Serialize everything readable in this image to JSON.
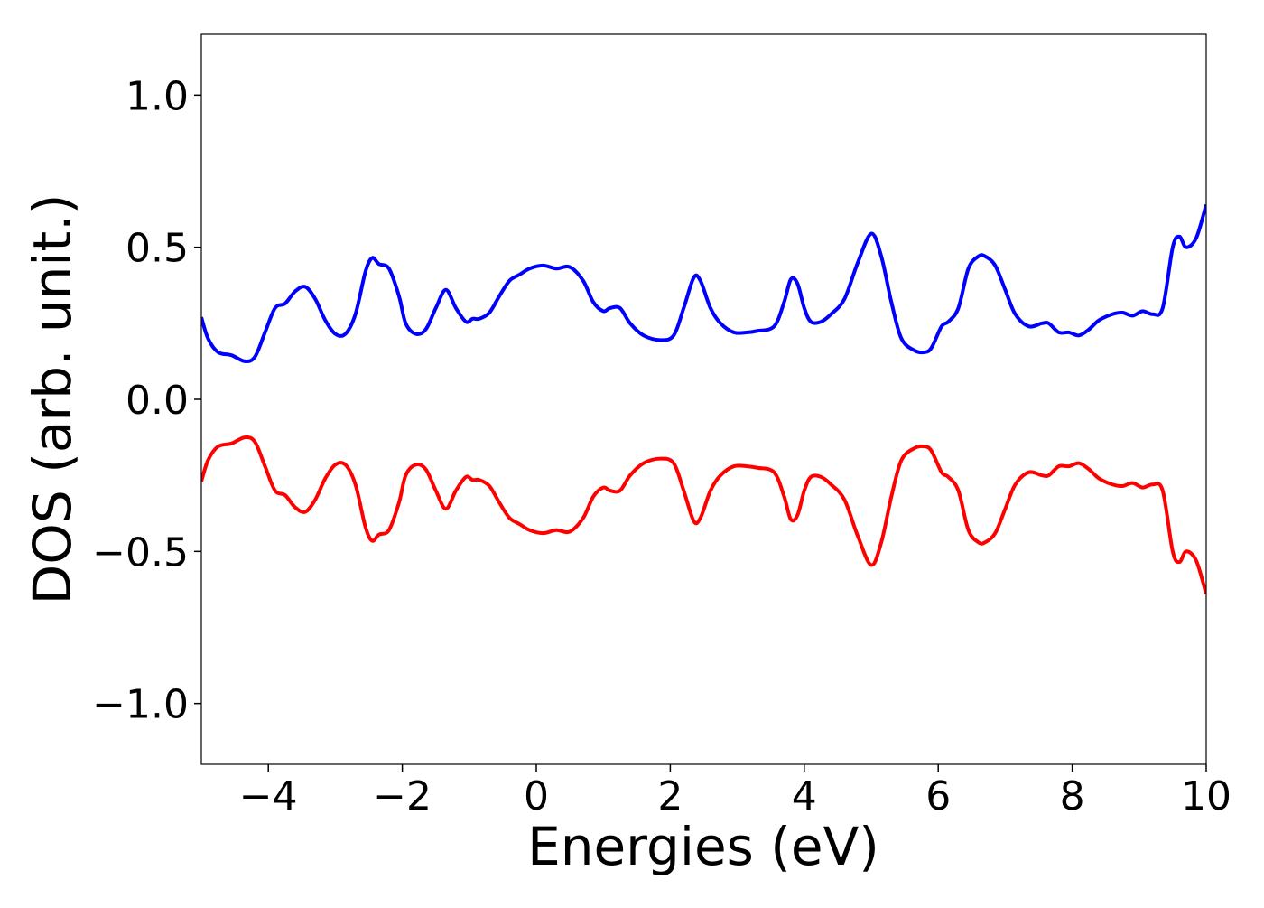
{
  "chart_data": {
    "type": "line",
    "title": "",
    "xlabel": "Energies (eV)",
    "ylabel": "DOS (arb. unit.)",
    "xlim": [
      -5,
      10
    ],
    "ylim": [
      -1.2,
      1.2
    ],
    "grid": false,
    "legend": "none",
    "x_ticks": [
      {
        "value": -4,
        "label": "−4"
      },
      {
        "value": -2,
        "label": "−2"
      },
      {
        "value": 0,
        "label": "0"
      },
      {
        "value": 2,
        "label": "2"
      },
      {
        "value": 4,
        "label": "4"
      },
      {
        "value": 6,
        "label": "6"
      },
      {
        "value": 8,
        "label": "8"
      },
      {
        "value": 10,
        "label": "10"
      }
    ],
    "y_ticks": [
      {
        "value": 1.0,
        "label": "1.0"
      },
      {
        "value": 0.5,
        "label": "0.5"
      },
      {
        "value": 0.0,
        "label": "0.0"
      },
      {
        "value": -0.5,
        "label": "−0.5"
      },
      {
        "value": -1.0,
        "label": "−1.0"
      }
    ],
    "series": [
      {
        "color": "#0000ff",
        "x": [
          -5.0,
          -4.9,
          -4.75,
          -4.55,
          -4.35,
          -4.2,
          -4.05,
          -3.9,
          -3.75,
          -3.6,
          -3.45,
          -3.3,
          -3.15,
          -3.0,
          -2.85,
          -2.7,
          -2.55,
          -2.45,
          -2.35,
          -2.2,
          -2.05,
          -1.95,
          -1.8,
          -1.65,
          -1.5,
          -1.35,
          -1.2,
          -1.05,
          -0.95,
          -0.85,
          -0.7,
          -0.55,
          -0.4,
          -0.25,
          -0.1,
          0.1,
          0.3,
          0.5,
          0.7,
          0.85,
          1.0,
          1.1,
          1.25,
          1.4,
          1.6,
          1.85,
          2.05,
          2.2,
          2.35,
          2.45,
          2.6,
          2.75,
          2.95,
          3.15,
          3.3,
          3.55,
          3.7,
          3.8,
          3.9,
          4.0,
          4.1,
          4.25,
          4.4,
          4.6,
          4.8,
          5.0,
          5.15,
          5.3,
          5.45,
          5.65,
          5.8,
          5.9,
          6.05,
          6.15,
          6.3,
          6.45,
          6.6,
          6.7,
          6.85,
          7.0,
          7.15,
          7.35,
          7.55,
          7.65,
          7.8,
          7.95,
          8.1,
          8.25,
          8.4,
          8.6,
          8.75,
          8.9,
          9.05,
          9.2,
          9.35,
          9.5,
          9.6,
          9.7,
          9.85,
          10.0
        ],
        "y": [
          0.27,
          0.2,
          0.155,
          0.145,
          0.125,
          0.14,
          0.22,
          0.3,
          0.315,
          0.355,
          0.37,
          0.33,
          0.26,
          0.215,
          0.215,
          0.28,
          0.42,
          0.465,
          0.445,
          0.43,
          0.34,
          0.25,
          0.215,
          0.23,
          0.3,
          0.36,
          0.3,
          0.255,
          0.265,
          0.265,
          0.285,
          0.34,
          0.39,
          0.41,
          0.43,
          0.44,
          0.43,
          0.435,
          0.39,
          0.32,
          0.29,
          0.3,
          0.3,
          0.25,
          0.21,
          0.195,
          0.21,
          0.3,
          0.4,
          0.39,
          0.3,
          0.25,
          0.22,
          0.22,
          0.225,
          0.24,
          0.32,
          0.395,
          0.38,
          0.3,
          0.255,
          0.255,
          0.28,
          0.33,
          0.45,
          0.545,
          0.47,
          0.32,
          0.2,
          0.16,
          0.155,
          0.17,
          0.24,
          0.255,
          0.3,
          0.43,
          0.47,
          0.47,
          0.44,
          0.36,
          0.28,
          0.24,
          0.25,
          0.25,
          0.22,
          0.22,
          0.21,
          0.23,
          0.26,
          0.28,
          0.285,
          0.275,
          0.29,
          0.28,
          0.3,
          0.5,
          0.535,
          0.5,
          0.53,
          0.64
        ]
      },
      {
        "color": "#ff0000",
        "x": [
          -5.0,
          -4.9,
          -4.75,
          -4.55,
          -4.35,
          -4.2,
          -4.05,
          -3.9,
          -3.75,
          -3.6,
          -3.45,
          -3.3,
          -3.15,
          -3.0,
          -2.85,
          -2.7,
          -2.55,
          -2.45,
          -2.35,
          -2.2,
          -2.05,
          -1.95,
          -1.8,
          -1.65,
          -1.5,
          -1.35,
          -1.2,
          -1.05,
          -0.95,
          -0.85,
          -0.7,
          -0.55,
          -0.4,
          -0.25,
          -0.1,
          0.1,
          0.3,
          0.5,
          0.7,
          0.85,
          1.0,
          1.1,
          1.25,
          1.4,
          1.6,
          1.85,
          2.05,
          2.2,
          2.35,
          2.45,
          2.6,
          2.75,
          2.95,
          3.15,
          3.3,
          3.55,
          3.7,
          3.8,
          3.9,
          4.0,
          4.1,
          4.25,
          4.4,
          4.6,
          4.8,
          5.0,
          5.15,
          5.3,
          5.45,
          5.65,
          5.8,
          5.9,
          6.05,
          6.15,
          6.3,
          6.45,
          6.6,
          6.7,
          6.85,
          7.0,
          7.15,
          7.35,
          7.55,
          7.65,
          7.8,
          7.95,
          8.1,
          8.25,
          8.4,
          8.6,
          8.75,
          8.9,
          9.05,
          9.2,
          9.35,
          9.5,
          9.6,
          9.7,
          9.85,
          10.0
        ],
        "y": [
          -0.27,
          -0.2,
          -0.155,
          -0.145,
          -0.125,
          -0.14,
          -0.22,
          -0.3,
          -0.315,
          -0.355,
          -0.37,
          -0.33,
          -0.26,
          -0.215,
          -0.215,
          -0.28,
          -0.42,
          -0.465,
          -0.445,
          -0.43,
          -0.34,
          -0.25,
          -0.215,
          -0.23,
          -0.3,
          -0.36,
          -0.3,
          -0.255,
          -0.265,
          -0.265,
          -0.285,
          -0.34,
          -0.39,
          -0.41,
          -0.43,
          -0.44,
          -0.43,
          -0.435,
          -0.39,
          -0.32,
          -0.29,
          -0.3,
          -0.3,
          -0.25,
          -0.21,
          -0.195,
          -0.21,
          -0.3,
          -0.4,
          -0.39,
          -0.3,
          -0.25,
          -0.22,
          -0.22,
          -0.225,
          -0.24,
          -0.32,
          -0.395,
          -0.38,
          -0.3,
          -0.255,
          -0.255,
          -0.28,
          -0.33,
          -0.45,
          -0.545,
          -0.47,
          -0.32,
          -0.2,
          -0.16,
          -0.155,
          -0.17,
          -0.24,
          -0.255,
          -0.3,
          -0.43,
          -0.47,
          -0.47,
          -0.44,
          -0.36,
          -0.28,
          -0.24,
          -0.25,
          -0.25,
          -0.22,
          -0.22,
          -0.21,
          -0.23,
          -0.26,
          -0.28,
          -0.285,
          -0.275,
          -0.29,
          -0.28,
          -0.3,
          -0.5,
          -0.535,
          -0.5,
          -0.53,
          -0.64
        ]
      }
    ]
  }
}
